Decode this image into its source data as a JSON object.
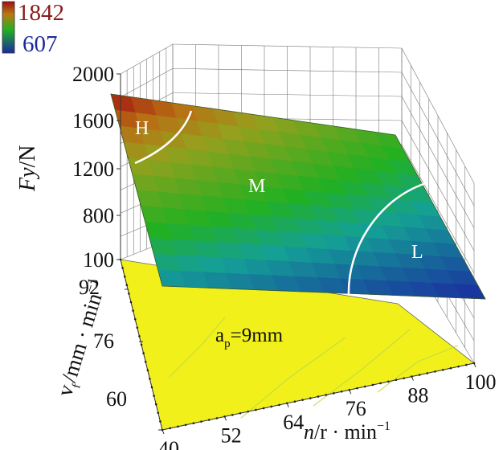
{
  "chart_data": {
    "type": "surface3d",
    "colorbar": {
      "max": "1842",
      "min": "607",
      "max_color": "#a01010",
      "mid_color": "#22b022",
      "min_color": "#1a2aa0"
    },
    "z_axis": {
      "label_italic": "Fy",
      "label_unit": "/N",
      "ticks": [
        "2000",
        "1600",
        "1200",
        "800",
        "100"
      ],
      "range": [
        100,
        2000
      ]
    },
    "x_axis": {
      "label_italic": "n",
      "label_unit": "/r · min",
      "label_sup": "−1",
      "ticks": [
        "40",
        "52",
        "64",
        "76",
        "88",
        "100"
      ],
      "range": [
        40,
        100
      ]
    },
    "y_axis": {
      "label_main": "v",
      "label_sub": "f",
      "label_unit": "/mm · min",
      "label_sup": "−1",
      "ticks": [
        "60",
        "76",
        "92"
      ],
      "range": [
        60,
        100
      ]
    },
    "surface": {
      "corners": [
        {
          "n": 40,
          "vf": 100,
          "Fy": 1842
        },
        {
          "n": 100,
          "vf": 100,
          "Fy": 1230
        },
        {
          "n": 100,
          "vf": 60,
          "Fy": 607
        },
        {
          "n": 40,
          "vf": 60,
          "Fy": 900
        }
      ]
    },
    "regions": [
      "H",
      "M",
      "L"
    ],
    "plane_annotation": {
      "main": "a",
      "sub": "p",
      "value": "=9mm"
    },
    "colors": {
      "plane": "#f2f01a",
      "contour": "#ffffff",
      "grid": "#777777"
    }
  }
}
